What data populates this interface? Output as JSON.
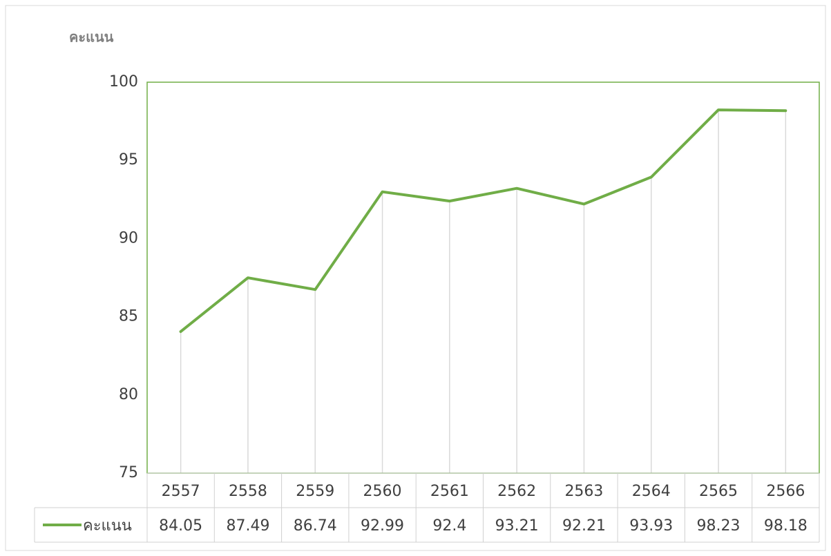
{
  "chart_data": {
    "type": "line",
    "y_label": "คะแนน",
    "categories": [
      "2557",
      "2558",
      "2559",
      "2560",
      "2561",
      "2562",
      "2563",
      "2564",
      "2565",
      "2566"
    ],
    "series": [
      {
        "name": "คะแนน",
        "color": "#70ad47",
        "values": [
          84.05,
          87.49,
          86.74,
          92.99,
          92.4,
          93.21,
          92.21,
          93.93,
          98.23,
          98.18
        ]
      }
    ],
    "ylim": [
      75,
      100
    ],
    "yticks": [
      75,
      80,
      85,
      90,
      95,
      100
    ],
    "drop_lines": true,
    "data_table": true
  }
}
